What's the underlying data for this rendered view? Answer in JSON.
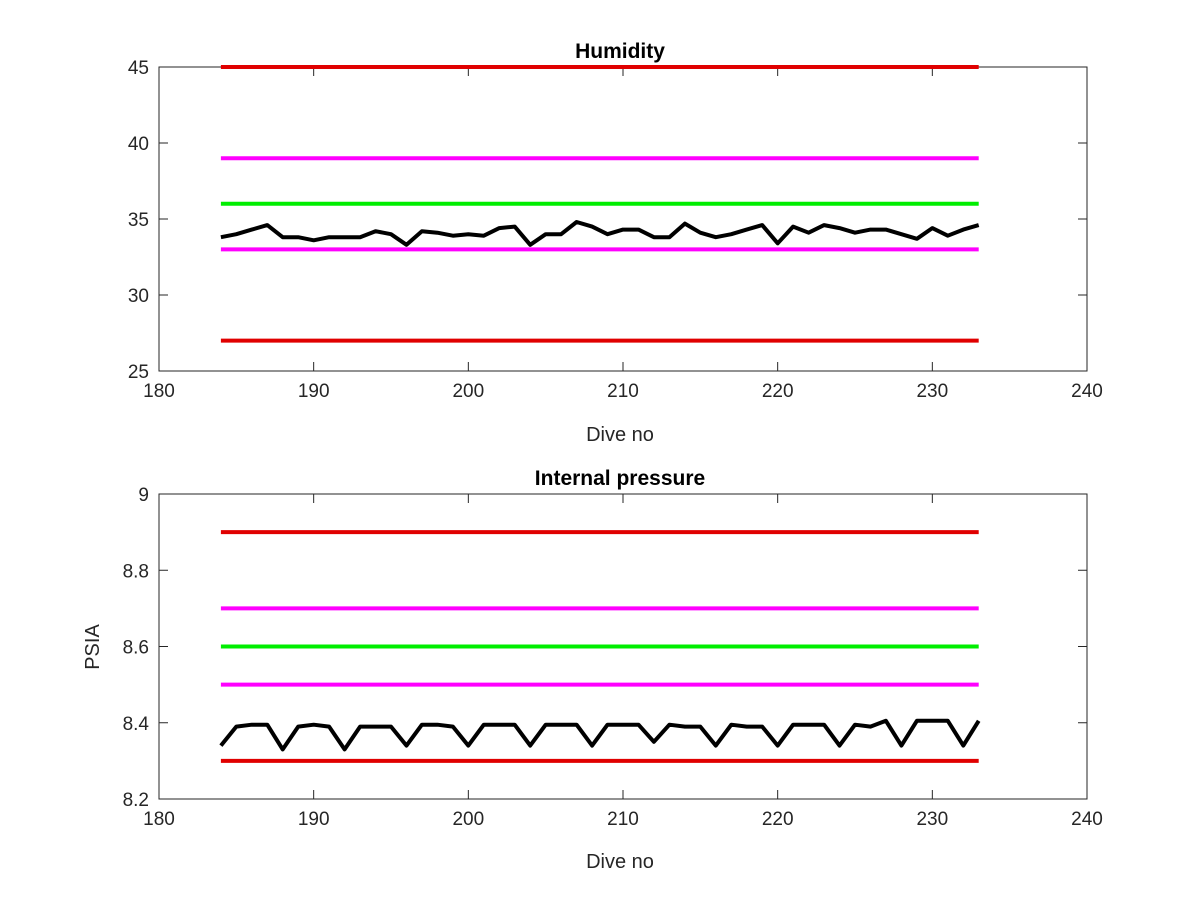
{
  "chart_data": [
    {
      "type": "line",
      "title": "Humidity",
      "xlabel": "Dive no",
      "ylabel": "",
      "xlim": [
        180,
        240
      ],
      "ylim": [
        25,
        45
      ],
      "xticks": [
        "180",
        "190",
        "200",
        "210",
        "220",
        "230",
        "240"
      ],
      "yticks": [
        "25",
        "30",
        "35",
        "40",
        "45"
      ],
      "grid": false,
      "series": [
        {
          "color": "#e00000",
          "x": [
            184,
            233
          ],
          "values": [
            45,
            45
          ]
        },
        {
          "color": "#ff00ff",
          "x": [
            184,
            233
          ],
          "values": [
            39,
            39
          ]
        },
        {
          "color": "#00ee00",
          "x": [
            184,
            233
          ],
          "values": [
            36,
            36
          ]
        },
        {
          "color": "#ff00ff",
          "x": [
            184,
            233
          ],
          "values": [
            33,
            33
          ]
        },
        {
          "color": "#e00000",
          "x": [
            184,
            233
          ],
          "values": [
            27,
            27
          ]
        },
        {
          "color": "#000000",
          "x": [
            184,
            185,
            186,
            187,
            188,
            189,
            190,
            191,
            192,
            193,
            194,
            195,
            196,
            197,
            198,
            199,
            200,
            201,
            202,
            203,
            204,
            205,
            206,
            207,
            208,
            209,
            210,
            211,
            212,
            213,
            214,
            215,
            216,
            217,
            218,
            219,
            220,
            221,
            222,
            223,
            224,
            225,
            226,
            227,
            228,
            229,
            230,
            231,
            232,
            233
          ],
          "values": [
            33.8,
            34.0,
            34.3,
            34.6,
            33.8,
            33.8,
            33.6,
            33.8,
            33.8,
            33.8,
            34.2,
            34.0,
            33.3,
            34.2,
            34.1,
            33.9,
            34.0,
            33.9,
            34.4,
            34.5,
            33.3,
            34.0,
            34.0,
            34.8,
            34.5,
            34.0,
            34.3,
            34.3,
            33.8,
            33.8,
            34.7,
            34.1,
            33.8,
            34.0,
            34.3,
            34.6,
            33.4,
            34.5,
            34.1,
            34.6,
            34.4,
            34.1,
            34.3,
            34.3,
            34.0,
            33.7,
            34.4,
            33.9,
            34.3,
            34.6
          ]
        }
      ]
    },
    {
      "type": "line",
      "title": "Internal pressure",
      "xlabel": "Dive no",
      "ylabel": "PSIA",
      "xlim": [
        180,
        240
      ],
      "ylim": [
        8.2,
        9
      ],
      "xticks": [
        "180",
        "190",
        "200",
        "210",
        "220",
        "230",
        "240"
      ],
      "yticks": [
        "8.2",
        "8.4",
        "8.6",
        "8.8",
        "9"
      ],
      "grid": false,
      "series": [
        {
          "color": "#e00000",
          "x": [
            184,
            233
          ],
          "values": [
            8.9,
            8.9
          ]
        },
        {
          "color": "#ff00ff",
          "x": [
            184,
            233
          ],
          "values": [
            8.7,
            8.7
          ]
        },
        {
          "color": "#00ee00",
          "x": [
            184,
            233
          ],
          "values": [
            8.6,
            8.6
          ]
        },
        {
          "color": "#ff00ff",
          "x": [
            184,
            233
          ],
          "values": [
            8.5,
            8.5
          ]
        },
        {
          "color": "#e00000",
          "x": [
            184,
            233
          ],
          "values": [
            8.3,
            8.3
          ]
        },
        {
          "color": "#000000",
          "x": [
            184,
            185,
            186,
            187,
            188,
            189,
            190,
            191,
            192,
            193,
            194,
            195,
            196,
            197,
            198,
            199,
            200,
            201,
            202,
            203,
            204,
            205,
            206,
            207,
            208,
            209,
            210,
            211,
            212,
            213,
            214,
            215,
            216,
            217,
            218,
            219,
            220,
            221,
            222,
            223,
            224,
            225,
            226,
            227,
            228,
            229,
            230,
            231,
            232,
            233
          ],
          "values": [
            8.34,
            8.39,
            8.395,
            8.395,
            8.33,
            8.39,
            8.395,
            8.39,
            8.33,
            8.39,
            8.39,
            8.39,
            8.34,
            8.395,
            8.395,
            8.39,
            8.34,
            8.395,
            8.395,
            8.395,
            8.34,
            8.395,
            8.395,
            8.395,
            8.34,
            8.395,
            8.395,
            8.395,
            8.35,
            8.395,
            8.39,
            8.39,
            8.34,
            8.395,
            8.39,
            8.39,
            8.34,
            8.395,
            8.395,
            8.395,
            8.34,
            8.395,
            8.39,
            8.405,
            8.34,
            8.405,
            8.405,
            8.405,
            8.34,
            8.405
          ]
        }
      ]
    }
  ]
}
